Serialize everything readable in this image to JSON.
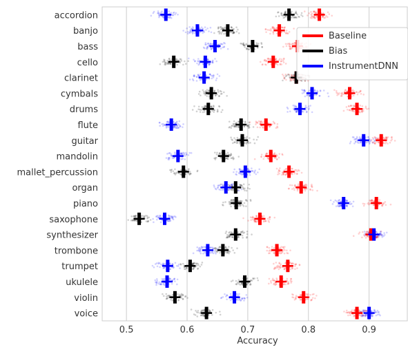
{
  "chart_data": {
    "type": "scatter",
    "xlabel": "Accuracy",
    "xlim": [
      0.46,
      0.963
    ],
    "xticks": [
      "0.5",
      "0.6",
      "0.7",
      "0.8",
      "0.9"
    ],
    "grid": true,
    "legend_position": "top-right",
    "categories": [
      "accordion",
      "banjo",
      "bass",
      "cello",
      "clarinet",
      "cymbals",
      "drums",
      "flute",
      "guitar",
      "mandolin",
      "mallet_percussion",
      "organ",
      "piano",
      "saxophone",
      "synthesizer",
      "trombone",
      "trumpet",
      "ukulele",
      "violin",
      "voice"
    ],
    "series": [
      {
        "name": "Baseline",
        "color": "#ff0000",
        "values": [
          0.818,
          0.752,
          0.782,
          0.742,
          0.78,
          0.868,
          0.88,
          0.73,
          0.92,
          0.738,
          0.768,
          0.788,
          0.912,
          0.72,
          0.903,
          0.748,
          0.766,
          0.755,
          0.792,
          0.88
        ]
      },
      {
        "name": "Bias",
        "color": "#000000",
        "values": [
          0.768,
          0.667,
          0.708,
          0.578,
          0.78,
          0.64,
          0.635,
          0.689,
          0.691,
          0.66,
          0.594,
          0.68,
          0.681,
          0.521,
          0.68,
          0.659,
          0.605,
          0.695,
          0.58,
          0.632
        ]
      },
      {
        "name": "InstrumentDNN",
        "color": "#0000ff",
        "values": [
          0.565,
          0.617,
          0.646,
          0.63,
          0.628,
          0.806,
          0.786,
          0.574,
          0.891,
          0.585,
          0.696,
          0.664,
          0.858,
          0.563,
          0.908,
          0.634,
          0.568,
          0.567,
          0.678,
          0.9
        ]
      }
    ]
  }
}
